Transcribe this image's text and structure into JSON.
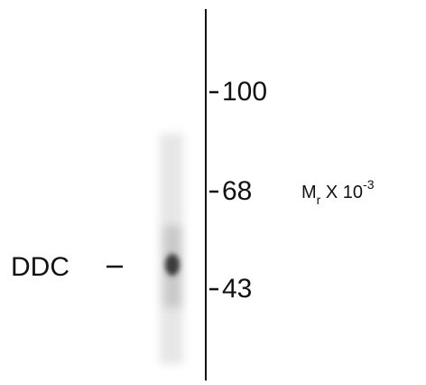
{
  "markers": {
    "labels": [
      100,
      68,
      43
    ]
  },
  "band": {
    "label": "DDC"
  },
  "unit_label": {
    "main": "M",
    "subscript": "r",
    "middle": " X 10",
    "superscript": "-3"
  }
}
